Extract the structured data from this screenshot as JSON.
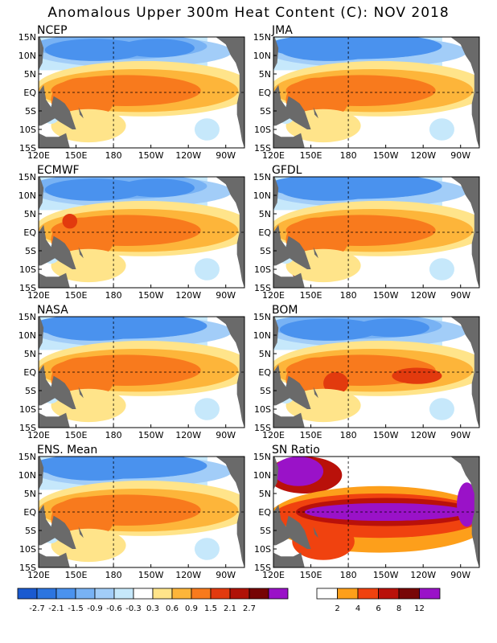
{
  "title": "Anomalous Upper 300m Heat Content (C): NOV 2018",
  "chart_data": [
    {
      "type": "heatmap",
      "title": "NCEP",
      "xlabel": "",
      "ylabel": "",
      "xticks": [
        "120E",
        "150E",
        "180",
        "150W",
        "120W",
        "90W"
      ],
      "yticks": [
        "15N",
        "10N",
        "5N",
        "EQ",
        "5S",
        "10S",
        "15S"
      ],
      "xlim": [
        "120E",
        "75W"
      ],
      "ylim": [
        "15S",
        "15N"
      ],
      "colorbar": "anomaly",
      "features": [
        {
          "type": "cold",
          "lon": [
            125,
            250
          ],
          "lat": [
            5,
            15
          ],
          "value": -0.9
        },
        {
          "type": "warm",
          "lon": [
            130,
            270
          ],
          "lat": [
            -8,
            5
          ],
          "value": 1.2
        },
        {
          "type": "cold",
          "lon": [
            240,
            265
          ],
          "lat": [
            -14,
            -8
          ],
          "value": -0.6
        }
      ]
    },
    {
      "type": "heatmap",
      "title": "JMA",
      "xlabel": "",
      "ylabel": "",
      "xticks": [
        "120E",
        "150E",
        "180",
        "150W",
        "120W",
        "90W"
      ],
      "yticks": [
        "15N",
        "10N",
        "5N",
        "EQ",
        "5S",
        "10S",
        "15S"
      ],
      "xlim": [
        "120E",
        "75W"
      ],
      "ylim": [
        "15S",
        "15N"
      ],
      "colorbar": "anomaly",
      "features": [
        {
          "type": "cold",
          "lon": [
            125,
            255
          ],
          "lat": [
            6,
            15
          ],
          "value": -1.2
        },
        {
          "type": "warm",
          "lon": [
            130,
            280
          ],
          "lat": [
            -8,
            6
          ],
          "value": 1.3
        }
      ]
    },
    {
      "type": "heatmap",
      "title": "ECMWF",
      "xlabel": "",
      "ylabel": "",
      "xticks": [
        "120E",
        "150E",
        "180",
        "150W",
        "120W",
        "90W"
      ],
      "yticks": [
        "15N",
        "10N",
        "5N",
        "EQ",
        "5S",
        "10S",
        "15S"
      ],
      "xlim": [
        "120E",
        "75W"
      ],
      "ylim": [
        "15S",
        "15N"
      ],
      "colorbar": "anomaly",
      "features": [
        {
          "type": "cold",
          "lon": [
            125,
            245
          ],
          "lat": [
            8,
            15
          ],
          "value": -0.9
        },
        {
          "type": "warm",
          "lon": [
            130,
            280
          ],
          "lat": [
            -10,
            7
          ],
          "value": 1.2
        }
      ]
    },
    {
      "type": "heatmap",
      "title": "GFDL",
      "xlabel": "",
      "ylabel": "",
      "xticks": [
        "120E",
        "150E",
        "180",
        "150W",
        "120W",
        "90W"
      ],
      "yticks": [
        "15N",
        "10N",
        "5N",
        "EQ",
        "5S",
        "10S",
        "15S"
      ],
      "xlim": [
        "120E",
        "75W"
      ],
      "ylim": [
        "15S",
        "15N"
      ],
      "colorbar": "anomaly",
      "features": [
        {
          "type": "cold",
          "lon": [
            125,
            250
          ],
          "lat": [
            8,
            15
          ],
          "value": -1.2
        },
        {
          "type": "warm",
          "lon": [
            130,
            280
          ],
          "lat": [
            -10,
            6
          ],
          "value": 1.2
        }
      ]
    },
    {
      "type": "heatmap",
      "title": "NASA",
      "xlabel": "",
      "ylabel": "",
      "xticks": [
        "120E",
        "150E",
        "180",
        "150W",
        "120W",
        "90W"
      ],
      "yticks": [
        "15N",
        "10N",
        "5N",
        "EQ",
        "5S",
        "10S",
        "15S"
      ],
      "xlim": [
        "120E",
        "75W"
      ],
      "ylim": [
        "15S",
        "15N"
      ],
      "colorbar": "anomaly",
      "features": [
        {
          "type": "cold",
          "lon": [
            125,
            250
          ],
          "lat": [
            7,
            15
          ],
          "value": -1.2
        },
        {
          "type": "warm",
          "lon": [
            130,
            280
          ],
          "lat": [
            -9,
            5
          ],
          "value": 1.2
        }
      ]
    },
    {
      "type": "heatmap",
      "title": "BOM",
      "xlabel": "",
      "ylabel": "",
      "xticks": [
        "120E",
        "150E",
        "180",
        "150W",
        "120W",
        "90W"
      ],
      "yticks": [
        "15N",
        "10N",
        "5N",
        "EQ",
        "5S",
        "10S",
        "15S"
      ],
      "xlim": [
        "120E",
        "75W"
      ],
      "ylim": [
        "15S",
        "15N"
      ],
      "colorbar": "anomaly",
      "features": [
        {
          "type": "cold",
          "lon": [
            125,
            250
          ],
          "lat": [
            8,
            15
          ],
          "value": -0.9
        },
        {
          "type": "warm",
          "lon": [
            130,
            280
          ],
          "lat": [
            -10,
            6
          ],
          "value": 1.5
        }
      ]
    },
    {
      "type": "heatmap",
      "title": "ENS. Mean",
      "xlabel": "",
      "ylabel": "",
      "xticks": [
        "120E",
        "150E",
        "180",
        "150W",
        "120W",
        "90W"
      ],
      "yticks": [
        "15N",
        "10N",
        "5N",
        "EQ",
        "5S",
        "10S",
        "15S"
      ],
      "xlim": [
        "120E",
        "75W"
      ],
      "ylim": [
        "15S",
        "15N"
      ],
      "colorbar": "anomaly",
      "features": [
        {
          "type": "cold",
          "lon": [
            125,
            250
          ],
          "lat": [
            7,
            15
          ],
          "value": -1.2
        },
        {
          "type": "warm",
          "lon": [
            130,
            280
          ],
          "lat": [
            -9,
            5
          ],
          "value": 1.2
        }
      ]
    },
    {
      "type": "heatmap",
      "title": "SN Ratio",
      "xlabel": "",
      "ylabel": "",
      "xticks": [
        "120E",
        "150E",
        "180",
        "150W",
        "120W",
        "90W"
      ],
      "yticks": [
        "15N",
        "10N",
        "5N",
        "EQ",
        "5S",
        "10S",
        "15S"
      ],
      "xlim": [
        "120E",
        "75W"
      ],
      "ylim": [
        "15S",
        "15N"
      ],
      "colorbar": "snr",
      "features": [
        {
          "type": "high",
          "lon": [
            125,
            160
          ],
          "lat": [
            8,
            15
          ],
          "value": 12
        },
        {
          "type": "high",
          "lon": [
            160,
            280
          ],
          "lat": [
            -3,
            3
          ],
          "value": 12
        },
        {
          "type": "moderate",
          "lon": [
            130,
            280
          ],
          "lat": [
            -10,
            8
          ],
          "value": 4
        }
      ]
    }
  ],
  "colorbars": {
    "anomaly": {
      "labels": [
        "-2.7",
        "-2.1",
        "-1.5",
        "-0.9",
        "-0.6",
        "-0.3",
        "0.3",
        "0.6",
        "0.9",
        "1.5",
        "2.1",
        "2.7"
      ],
      "colors": [
        "#1a5ad0",
        "#2c75e0",
        "#4a92ee",
        "#78b2f4",
        "#a2cdf8",
        "#c6e8fb",
        "#ffffff",
        "#ffe48a",
        "#fdb53a",
        "#f87a1d",
        "#e23a0e",
        "#b01207",
        "#760404",
        "#9a12c8"
      ]
    },
    "snr": {
      "labels": [
        "2",
        "4",
        "6",
        "8",
        "12"
      ],
      "colors": [
        "#ffffff",
        "#fd9f1b",
        "#f0420f",
        "#b9110a",
        "#780707",
        "#9a12c8"
      ]
    }
  }
}
